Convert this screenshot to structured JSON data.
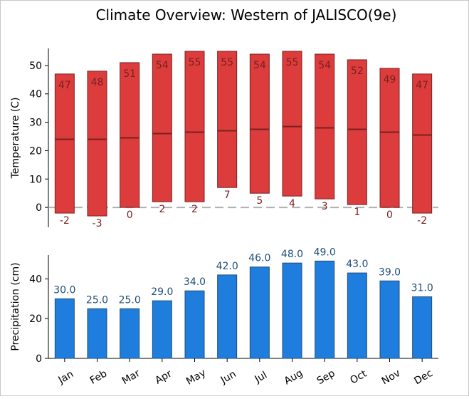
{
  "title": "Climate Overview: Western of JALISCO(9e)",
  "chart_data": [
    {
      "type": "bar",
      "subtype": "range",
      "title": "Climate Overview: Western of JALISCO(9e)",
      "ylabel": "Temperature (C)",
      "ylim": [
        -7,
        56
      ],
      "yticks": [
        0,
        10,
        20,
        30,
        40,
        50
      ],
      "categories": [
        "Jan",
        "Feb",
        "Mar",
        "Apr",
        "May",
        "Jun",
        "Jul",
        "Aug",
        "Sep",
        "Oct",
        "Nov",
        "Dec"
      ],
      "max": [
        47,
        48,
        51,
        54,
        55,
        55,
        54,
        55,
        54,
        52,
        49,
        47
      ],
      "min": [
        -2,
        -3,
        0,
        2,
        2,
        7,
        5,
        4,
        3,
        1,
        0,
        -2
      ],
      "mean": [
        24,
        24,
        24.5,
        26,
        26.5,
        27,
        27.5,
        28.5,
        28,
        27.5,
        26.5,
        25.5
      ],
      "max_labels": [
        "47",
        "48",
        "51",
        "54",
        "55",
        "55",
        "54",
        "55",
        "54",
        "52",
        "49",
        "47"
      ],
      "min_labels": [
        "-2",
        "-3",
        "0",
        "2",
        "2",
        "7",
        "5",
        "4",
        "3",
        "1",
        "0",
        "-2"
      ],
      "reference_line": 0,
      "colors": {
        "bar": "#dd3c3c",
        "edge": "#7a1f1f",
        "label": "#7a1f1f",
        "zero_line": "#b0b0b0"
      }
    },
    {
      "type": "bar",
      "ylabel": "Precipitation (cm)",
      "ylim": [
        0,
        52
      ],
      "yticks": [
        0,
        20,
        40
      ],
      "categories": [
        "Jan",
        "Feb",
        "Mar",
        "Apr",
        "May",
        "Jun",
        "Jul",
        "Aug",
        "Sep",
        "Oct",
        "Nov",
        "Dec"
      ],
      "values": [
        30,
        25,
        25,
        29,
        34,
        42,
        46,
        48,
        49,
        43,
        39,
        31
      ],
      "value_labels": [
        "30.0",
        "25.0",
        "25.0",
        "29.0",
        "34.0",
        "42.0",
        "46.0",
        "48.0",
        "49.0",
        "43.0",
        "39.0",
        "31.0"
      ],
      "colors": {
        "bar": "#1f7ddd",
        "edge": "#1f4e79",
        "label": "#1f4e79"
      }
    }
  ]
}
